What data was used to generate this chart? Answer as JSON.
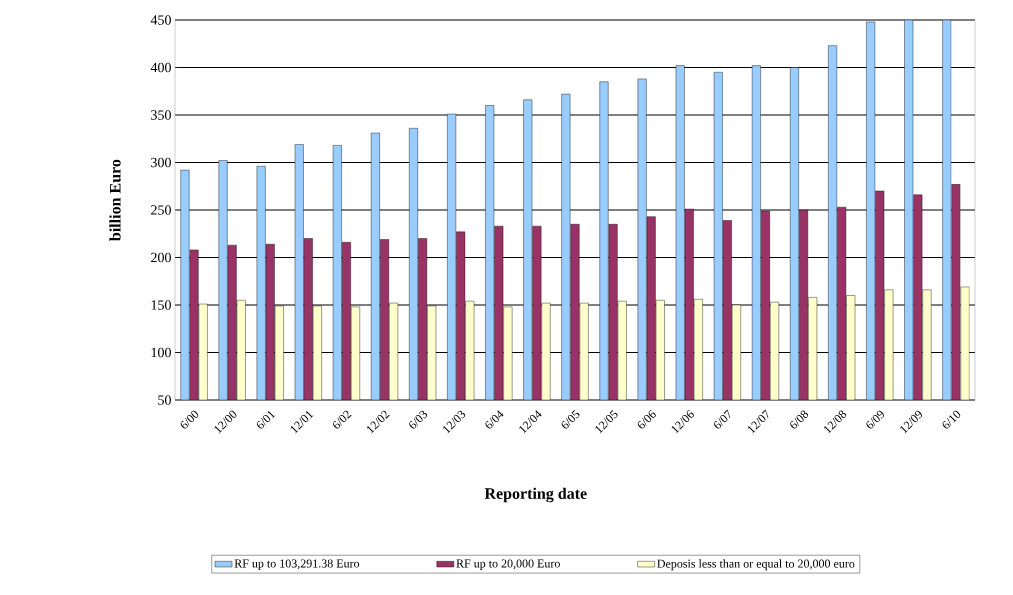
{
  "chart_data": {
    "type": "bar",
    "xlabel": "Reporting date",
    "ylabel": "billion Euro",
    "categories": [
      "6/00",
      "12/00",
      "6/01",
      "12/01",
      "6/02",
      "12/02",
      "6/03",
      "12/03",
      "6/04",
      "12/04",
      "6/05",
      "12/05",
      "6/06",
      "12/06",
      "6/07",
      "12/07",
      "6/08",
      "12/08",
      "6/09",
      "12/09",
      "6/10"
    ],
    "series": [
      {
        "name": "RF up to 103,291.38 Euro",
        "color": "#99ccff",
        "values": [
          292,
          302,
          296,
          319,
          318,
          331,
          336,
          351,
          360,
          366,
          372,
          385,
          388,
          402,
          395,
          402,
          400,
          423,
          448,
          450,
          450
        ]
      },
      {
        "name": "RF up to 20,000 Euro",
        "color": "#993366",
        "values": [
          208,
          213,
          214,
          220,
          216,
          219,
          220,
          227,
          233,
          233,
          235,
          235,
          243,
          251,
          239,
          249,
          250,
          253,
          270,
          266,
          277
        ]
      },
      {
        "name": "Deposis less than or equal to 20,000 euro",
        "color": "#ffffcc",
        "values": [
          151,
          155,
          149,
          149,
          148,
          152,
          149,
          154,
          148,
          152,
          152,
          154,
          155,
          156,
          150,
          153,
          158,
          160,
          166,
          166,
          169
        ]
      }
    ],
    "ylim": [
      50,
      450
    ],
    "yticks": [
      50,
      100,
      150,
      200,
      250,
      300,
      350,
      400,
      450
    ],
    "grid": "y",
    "legend": "bottom"
  }
}
